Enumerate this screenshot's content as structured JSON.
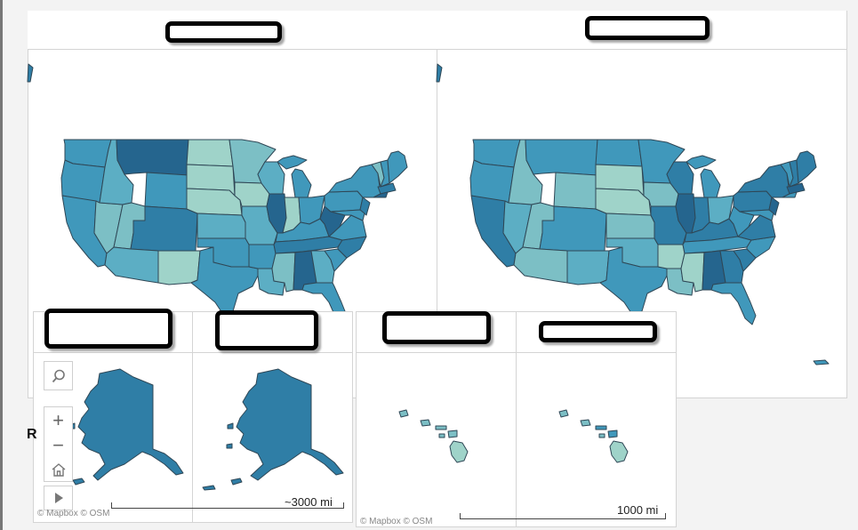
{
  "colors": {
    "c1": "#9fd3c9",
    "c2": "#7cbfc5",
    "c3": "#5caec4",
    "c4": "#4098bb",
    "c5": "#2f7ea6",
    "c6": "#25658e",
    "stroke": "#2f4756"
  },
  "map_controls": {
    "search_icon": "search-icon",
    "zoom_in_label": "+",
    "zoom_out_label": "−",
    "home_icon": "home-icon",
    "play_icon": "play-icon"
  },
  "attribution": {
    "left": "© Mapbox  © OSM",
    "right": "© Mapbox  © OSM"
  },
  "scales": {
    "alaska": "~3000 mi",
    "hawaii": "1000 mi"
  },
  "partial_text": "R"
}
